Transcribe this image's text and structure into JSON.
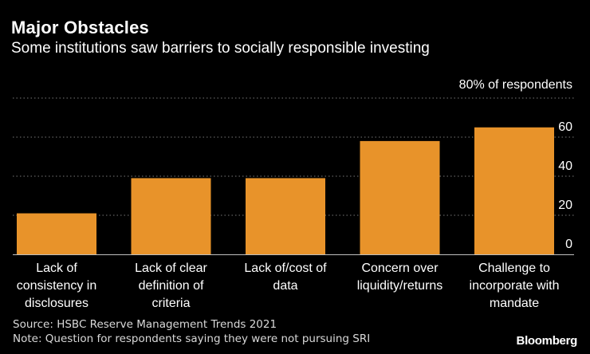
{
  "header": {
    "title": "Major Obstacles",
    "subtitle": "Some institutions saw barriers to socially responsible investing"
  },
  "chart_data": {
    "type": "bar",
    "title": "Major Obstacles",
    "subtitle": "Some institutions saw barriers to socially responsible investing",
    "unit_label": "80% of respondents",
    "categories": [
      "Lack of consistency in disclosures",
      "Lack of clear definition of criteria",
      "Lack of/cost of data",
      "Concern over liquidity/returns",
      "Challenge to incorporate with mandate"
    ],
    "category_lines": [
      [
        "Lack of",
        "consistency in",
        "disclosures"
      ],
      [
        "Lack of clear",
        "definition of",
        "criteria"
      ],
      [
        "Lack of/cost of",
        "data"
      ],
      [
        "Concern over",
        "liquidity/returns"
      ],
      [
        "Challenge to",
        "incorporate with",
        "mandate"
      ]
    ],
    "values": [
      21,
      39,
      39,
      58,
      65
    ],
    "ylim": [
      0,
      80
    ],
    "yticks": [
      0,
      20,
      40,
      60
    ],
    "top_tick_label": "80% of respondents",
    "xlabel": "",
    "ylabel": "",
    "grid": true,
    "bar_color": "#E8932A",
    "grid_color": "#777777"
  },
  "footer": {
    "source": "Source: HSBC Reserve Management Trends 2021",
    "note": "Note: Question for respondents saying they were not pursuing SRI",
    "brand": "Bloomberg"
  }
}
